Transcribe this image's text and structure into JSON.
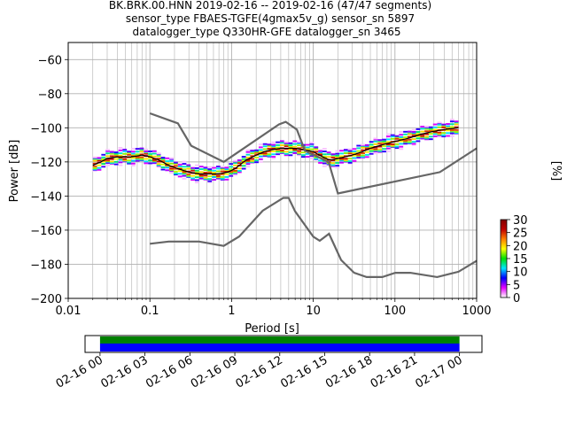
{
  "chart_data": {
    "type": "heatmap",
    "title_lines": [
      "BK.BRK.00.HNN   2019-02-16 -- 2019-02-16  (47/47 segments)",
      "sensor_type FBAES-TGFE(4gmax5v_g) sensor_sn 5897",
      "datalogger_type Q330HR-GFE datalogger_sn 3465"
    ],
    "xlabel": "Period [s]",
    "ylabel": "Power [dB]",
    "x_scale": "log",
    "xlim": [
      0.01,
      1000
    ],
    "ylim": [
      -200,
      -50
    ],
    "x_ticks": [
      {
        "value": 0.01,
        "label": "0.01"
      },
      {
        "value": 0.1,
        "label": "0.1"
      },
      {
        "value": 1,
        "label": "1"
      },
      {
        "value": 10,
        "label": "10"
      },
      {
        "value": 100,
        "label": "100"
      },
      {
        "value": 1000,
        "label": "1000"
      }
    ],
    "y_ticks": [
      {
        "value": -60,
        "label": "−60"
      },
      {
        "value": -80,
        "label": "−80"
      },
      {
        "value": -100,
        "label": "−100"
      },
      {
        "value": -120,
        "label": "−120"
      },
      {
        "value": -140,
        "label": "−140"
      },
      {
        "value": -160,
        "label": "−160"
      },
      {
        "value": -180,
        "label": "−180"
      },
      {
        "value": -200,
        "label": "−200"
      }
    ],
    "grid": true,
    "colorbar": {
      "label": "[%]",
      "min": 0,
      "max": 30,
      "ticks": [
        "0",
        "5",
        "10",
        "15",
        "20",
        "25",
        "30"
      ],
      "colors": [
        "#ffffff",
        "#e600ff",
        "#0000ff",
        "#00e5ff",
        "#00e000",
        "#ffff00",
        "#ff8000",
        "#c00000",
        "#800000"
      ]
    },
    "series": [
      {
        "role": "psd_mode",
        "color": "#000000",
        "x": [
          0.02,
          0.025,
          0.03,
          0.04,
          0.05,
          0.06,
          0.08,
          0.1,
          0.13,
          0.17,
          0.22,
          0.3,
          0.4,
          0.5,
          0.7,
          0.9,
          1.1,
          1.5,
          2,
          2.5,
          3,
          4,
          5,
          6,
          8,
          10,
          13,
          16,
          20,
          30,
          40,
          50,
          70,
          100,
          150,
          200,
          300,
          400,
          600
        ],
        "y": [
          -122,
          -120,
          -118,
          -117,
          -117,
          -117,
          -116,
          -117,
          -119,
          -122,
          -124,
          -126,
          -127,
          -127,
          -127,
          -126,
          -124,
          -119,
          -116,
          -114,
          -113,
          -112,
          -112,
          -112,
          -113,
          -114,
          -117,
          -119,
          -118,
          -116,
          -114,
          -112,
          -110,
          -108,
          -106,
          -104,
          -102,
          -101,
          -100
        ]
      },
      {
        "role": "nhnm",
        "color": "#666666",
        "x": [
          0.1,
          0.22,
          0.32,
          0.8,
          3.8,
          4.6,
          6.3,
          7.9,
          15.4,
          20,
          354.8,
          1000
        ],
        "y": [
          -91.5,
          -97.4,
          -110.5,
          -120,
          -98,
          -96.5,
          -101,
          -113.5,
          -120,
          -138.5,
          -126,
          -112
        ]
      },
      {
        "role": "nlnm",
        "color": "#666666",
        "x": [
          0.1,
          0.17,
          0.4,
          0.8,
          1.24,
          2.4,
          4.3,
          5,
          6,
          10,
          12,
          15.6,
          21.9,
          31.6,
          45,
          70,
          101,
          154,
          328,
          600,
          1000
        ],
        "y": [
          -168,
          -166.7,
          -166.7,
          -169.2,
          -163.7,
          -148.6,
          -141.1,
          -141.1,
          -149,
          -163.8,
          -166.2,
          -162.1,
          -177.5,
          -185,
          -187.5,
          -187.5,
          -185,
          -185,
          -187.5,
          -184.4,
          -178
        ]
      }
    ]
  },
  "coverage": {
    "xlim_hours": [
      -1,
      25.5
    ],
    "ticks": [
      "02-16 00",
      "02-16 03",
      "02-16 06",
      "02-16 09",
      "02-16 12",
      "02-16 15",
      "02-16 18",
      "02-16 21",
      "02-17 00"
    ],
    "tick_hours": [
      0,
      3,
      6,
      9,
      12,
      15,
      18,
      21,
      24
    ],
    "data_span_hours": [
      0,
      24
    ],
    "colors": {
      "gaps": "#008000",
      "data": "#0000ff"
    }
  }
}
